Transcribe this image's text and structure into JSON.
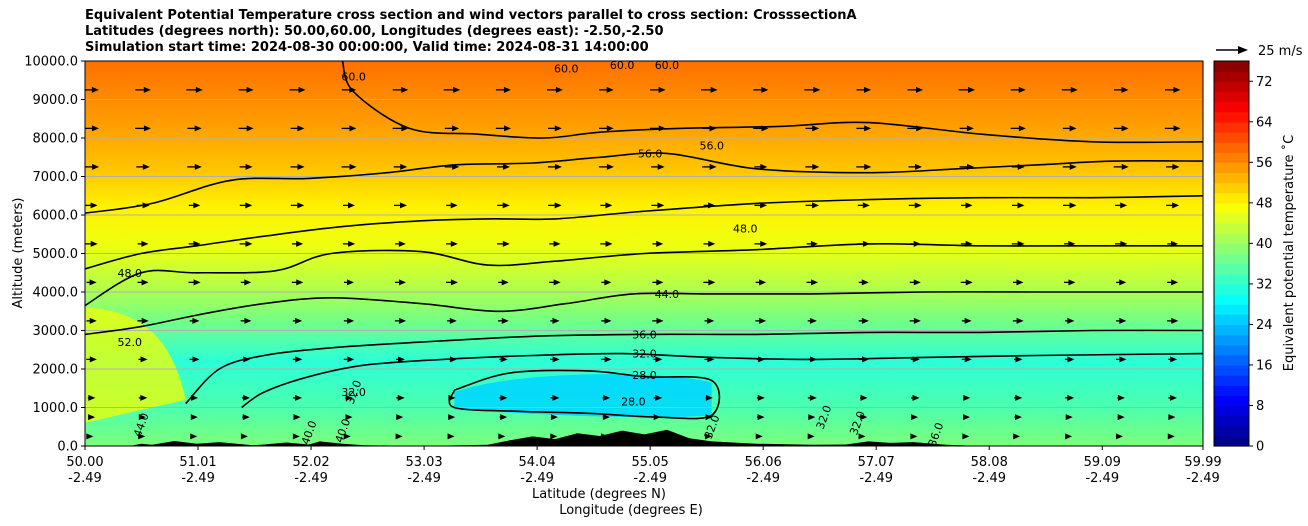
{
  "chart_data": {
    "type": "heatmap",
    "title_lines": [
      "Equivalent Potential Temperature cross section and wind vectors parallel to cross section: CrosssectionA",
      "Latitudes (degrees north): 50.00,60.00, Longitudes (degrees east): -2.50,-2.50",
      "Simulation start time: 2024-08-30 00:00:00, Valid time: 2024-08-31 14:00:00"
    ],
    "ylabel": "Altitude (meters)",
    "xlabel_lat": "Latitude (degrees N)",
    "xlabel_lon": "Longitude (degrees E)",
    "ylim": [
      0,
      10000
    ],
    "yticks": [
      "0.0",
      "1000.0",
      "2000.0",
      "3000.0",
      "4000.0",
      "5000.0",
      "6000.0",
      "7000.0",
      "8000.0",
      "9000.0",
      "10000.0"
    ],
    "ytick_values": [
      0,
      1000,
      2000,
      3000,
      4000,
      5000,
      6000,
      7000,
      8000,
      9000,
      10000
    ],
    "xlim": [
      50.0,
      59.99
    ],
    "xtick_values": [
      50.0,
      51.01,
      52.02,
      53.03,
      54.04,
      55.05,
      56.06,
      57.07,
      58.08,
      59.09,
      59.99
    ],
    "xtick_lat": [
      "50.00",
      "51.01",
      "52.02",
      "53.03",
      "54.04",
      "55.05",
      "56.06",
      "57.07",
      "58.08",
      "59.09",
      "59.99"
    ],
    "xtick_lon": [
      "-2.49",
      "-2.49",
      "-2.49",
      "-2.49",
      "-2.49",
      "-2.49",
      "-2.49",
      "-2.49",
      "-2.49",
      "-2.49",
      "-2.49"
    ],
    "grid": "horizontal",
    "colorbar": {
      "label": "Equivalent potential temperature ˚C",
      "range": [
        0,
        76
      ],
      "ticks": [
        "0",
        "8",
        "16",
        "24",
        "32",
        "40",
        "48",
        "56",
        "64",
        "72"
      ],
      "tick_values": [
        0,
        8,
        16,
        24,
        32,
        40,
        48,
        56,
        64,
        72
      ],
      "colormap": "jet"
    },
    "wind_key": "25 m/s",
    "contours": [
      {
        "value": 28,
        "points": [
          [
            53.3,
            1450
          ],
          [
            53.8,
            1900
          ],
          [
            54.5,
            1950
          ],
          [
            55.0,
            1800
          ],
          [
            55.6,
            1700
          ],
          [
            55.6,
            800
          ],
          [
            55.1,
            750
          ],
          [
            54.5,
            850
          ],
          [
            53.9,
            900
          ],
          [
            53.3,
            1000
          ],
          [
            53.3,
            1450
          ]
        ],
        "labels": [
          {
            "text": "28.0",
            "x": 55.0,
            "y": 1850
          },
          {
            "text": "28.0",
            "x": 54.9,
            "y": 1150
          }
        ]
      },
      {
        "value": 32,
        "points": [
          [
            51.4,
            1000
          ],
          [
            51.6,
            1400
          ],
          [
            52.0,
            1800
          ],
          [
            52.5,
            2100
          ],
          [
            53.2,
            2250
          ],
          [
            54.0,
            2350
          ],
          [
            54.8,
            2400
          ],
          [
            55.6,
            2300
          ],
          [
            56.5,
            2250
          ],
          [
            57.5,
            2300
          ],
          [
            58.5,
            2350
          ],
          [
            59.99,
            2400
          ]
        ],
        "labels": [
          {
            "text": "32.0",
            "x": 55.0,
            "y": 2400
          },
          {
            "text": "32.0",
            "x": 52.4,
            "y": 1400
          }
        ]
      },
      {
        "value": 36,
        "points": [
          [
            50.9,
            1100
          ],
          [
            51.2,
            2000
          ],
          [
            51.6,
            2350
          ],
          [
            52.2,
            2550
          ],
          [
            53.0,
            2700
          ],
          [
            54.0,
            2850
          ],
          [
            55.0,
            2900
          ],
          [
            56.0,
            2900
          ],
          [
            57.0,
            2950
          ],
          [
            58.0,
            2950
          ],
          [
            59.0,
            3000
          ],
          [
            59.99,
            3000
          ]
        ],
        "labels": [
          {
            "text": "36.0",
            "x": 55.0,
            "y": 2900
          }
        ]
      },
      {
        "value": 44,
        "points": [
          [
            50.0,
            2900
          ],
          [
            50.5,
            3100
          ],
          [
            51.0,
            3400
          ],
          [
            51.6,
            3700
          ],
          [
            52.2,
            3850
          ],
          [
            53.0,
            3700
          ],
          [
            53.7,
            3500
          ],
          [
            54.3,
            3700
          ],
          [
            54.9,
            3950
          ],
          [
            55.6,
            3950
          ],
          [
            56.5,
            3950
          ],
          [
            57.5,
            4000
          ],
          [
            58.5,
            4000
          ],
          [
            59.99,
            4000
          ]
        ],
        "labels": [
          {
            "text": "44.0",
            "x": 55.2,
            "y": 3950
          }
        ]
      },
      {
        "value": 48,
        "points": [
          [
            50.0,
            3650
          ],
          [
            50.5,
            4500
          ],
          [
            51.0,
            4500
          ],
          [
            51.7,
            4550
          ],
          [
            52.2,
            5000
          ],
          [
            53.0,
            5050
          ],
          [
            53.6,
            4700
          ],
          [
            54.2,
            4800
          ],
          [
            55.0,
            5000
          ],
          [
            56.0,
            5100
          ],
          [
            57.0,
            5250
          ],
          [
            58.0,
            5200
          ],
          [
            59.0,
            5200
          ],
          [
            59.99,
            5200
          ]
        ],
        "labels": [
          {
            "text": "48.0",
            "x": 50.4,
            "y": 4500
          },
          {
            "text": "48.0",
            "x": 55.9,
            "y": 5650
          }
        ]
      },
      {
        "value": 52,
        "points": [
          [
            50.0,
            4600
          ],
          [
            50.5,
            5000
          ],
          [
            51.0,
            5200
          ],
          [
            51.6,
            5450
          ],
          [
            52.3,
            5700
          ],
          [
            53.0,
            5850
          ],
          [
            53.6,
            5900
          ],
          [
            54.2,
            5900
          ],
          [
            55.0,
            6100
          ],
          [
            56.0,
            6300
          ],
          [
            57.0,
            6400
          ],
          [
            58.0,
            6450
          ],
          [
            59.0,
            6450
          ],
          [
            59.99,
            6500
          ]
        ],
        "labels": [
          {
            "text": "52.0",
            "x": 50.4,
            "y": 2700
          }
        ]
      },
      {
        "value": 56,
        "points": [
          [
            50.0,
            6050
          ],
          [
            50.6,
            6300
          ],
          [
            51.3,
            6900
          ],
          [
            52.0,
            6950
          ],
          [
            52.7,
            7100
          ],
          [
            53.3,
            7300
          ],
          [
            54.0,
            7350
          ],
          [
            54.6,
            7500
          ],
          [
            55.2,
            7600
          ],
          [
            56.0,
            7200
          ],
          [
            57.0,
            7100
          ],
          [
            57.8,
            7200
          ],
          [
            58.5,
            7300
          ],
          [
            59.2,
            7400
          ],
          [
            59.99,
            7400
          ]
        ],
        "labels": [
          {
            "text": "56.0",
            "x": 55.05,
            "y": 7600
          },
          {
            "text": "56.0",
            "x": 55.6,
            "y": 7800
          }
        ]
      },
      {
        "value": 60,
        "points": [
          [
            52.3,
            10000
          ],
          [
            52.4,
            9200
          ],
          [
            52.9,
            8250
          ],
          [
            53.5,
            8100
          ],
          [
            54.1,
            8000
          ],
          [
            54.6,
            8150
          ],
          [
            55.3,
            8250
          ],
          [
            56.2,
            8300
          ],
          [
            57.0,
            8400
          ],
          [
            58.0,
            8100
          ],
          [
            59.0,
            7900
          ],
          [
            59.99,
            7900
          ]
        ],
        "labels": [
          {
            "text": "60.0",
            "x": 52.4,
            "y": 9600
          },
          {
            "text": "60.0",
            "x": 54.3,
            "y": 9800
          },
          {
            "text": "60.0",
            "x": 54.8,
            "y": 9900
          },
          {
            "text": "60.0",
            "x": 55.2,
            "y": 9900
          }
        ]
      }
    ],
    "extra_labels": [
      {
        "text": "32.0",
        "x": 52.4,
        "y": 1400
      },
      {
        "text": "44.0",
        "x": 50.5,
        "y": 550
      },
      {
        "text": "40.0",
        "x": 52.0,
        "y": 350
      },
      {
        "text": "40.0",
        "x": 52.3,
        "y": 400
      },
      {
        "text": "32.0",
        "x": 55.6,
        "y": 500
      },
      {
        "text": "32.0",
        "x": 56.6,
        "y": 750
      },
      {
        "text": "32.0",
        "x": 56.9,
        "y": 600
      },
      {
        "text": "36.0",
        "x": 57.6,
        "y": 300
      }
    ],
    "wind_field": {
      "u_ms": [
        3,
        6,
        8,
        10,
        11,
        12,
        13,
        14,
        16,
        17,
        18
      ],
      "levels_m": [
        250,
        750,
        1250,
        2250,
        3250,
        4250,
        5250,
        6250,
        7250,
        8250,
        9250
      ]
    }
  }
}
